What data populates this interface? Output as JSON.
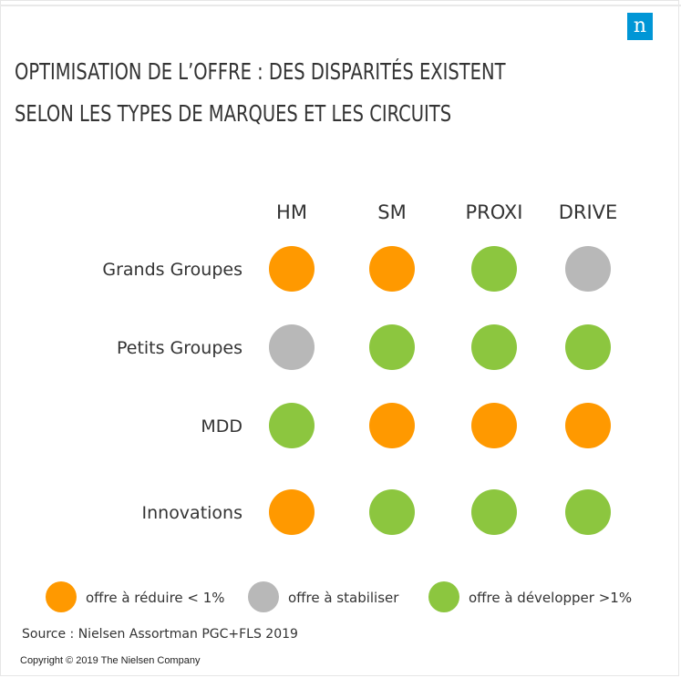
{
  "logo_letter": "n",
  "title_lines": [
    "OPTIMISATION  DE L’OFFRE : DES DISPARITÉS EXISTENT",
    "SELON LES TYPES DE MARQUES ET LES CIRCUITS"
  ],
  "colors": {
    "reduce": "#ff9900",
    "stabilize": "#b8b8b8",
    "develop": "#8cc63f",
    "logo": "#0096d6"
  },
  "chart_data": {
    "type": "table",
    "columns": [
      "HM",
      "SM",
      "PROXI",
      "DRIVE"
    ],
    "rows": [
      {
        "label": "Grands Groupes",
        "values": [
          "reduce",
          "reduce",
          "develop",
          "stabilize"
        ]
      },
      {
        "label": "Petits Groupes",
        "values": [
          "stabilize",
          "develop",
          "develop",
          "develop"
        ]
      },
      {
        "label": "MDD",
        "values": [
          "develop",
          "reduce",
          "reduce",
          "reduce"
        ]
      },
      {
        "label": "Innovations",
        "values": [
          "reduce",
          "develop",
          "develop",
          "develop"
        ]
      }
    ],
    "legend": [
      {
        "key": "reduce",
        "label": "offre à réduire < 1%"
      },
      {
        "key": "stabilize",
        "label": "offre à stabiliser"
      },
      {
        "key": "develop",
        "label": "offre à développer >1%"
      }
    ]
  },
  "source": "Source : Nielsen Assortman PGC+FLS 2019",
  "copyright": "Copyright © 2019 The Nielsen Company"
}
